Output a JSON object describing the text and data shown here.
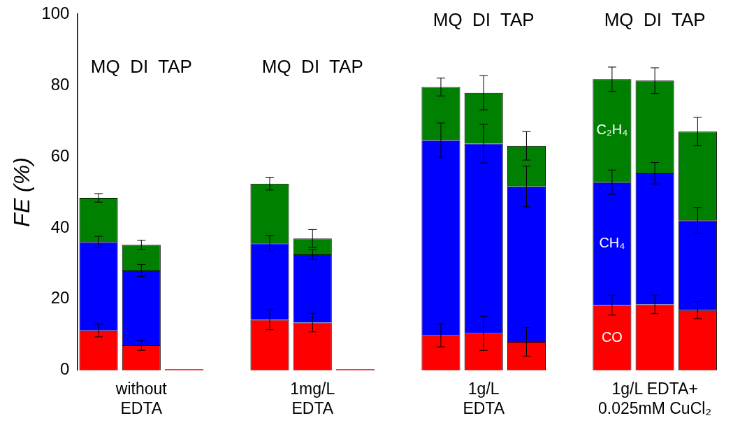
{
  "chart_data": {
    "type": "bar",
    "stacked": true,
    "ylabel": "FE (%)",
    "categories": [
      null,
      "without\nEDTA",
      null,
      null,
      null,
      "1mg/L\nEDTA",
      null,
      null,
      null,
      "1g/L\nEDTA",
      null,
      null,
      null,
      "1g/L EDTA+\n0.025mM CuCl₂",
      null
    ],
    "series": [
      {
        "name": "CO",
        "color": "#ff0000",
        "values": [
          11.2,
          7,
          0.3,
          null,
          14.2,
          13.4,
          0.3,
          null,
          9.8,
          10.4,
          8,
          null,
          18.3,
          18.5,
          16.9
        ],
        "errors": [
          1.8,
          1.4,
          null,
          null,
          2.8,
          2.6,
          null,
          null,
          3.2,
          4.8,
          4,
          null,
          2.8,
          2.6,
          2.4
        ]
      },
      {
        "name": "CH₄",
        "color": "#0000ff",
        "values": [
          24.8,
          21,
          0,
          null,
          21.4,
          19.1,
          0,
          null,
          54.8,
          53.2,
          43.6,
          null,
          34.5,
          36.8,
          25.2
        ],
        "errors": [
          1.6,
          1.7,
          null,
          null,
          2.2,
          1.4,
          null,
          null,
          4.8,
          5.4,
          5.7,
          null,
          3.4,
          3,
          3.6
        ]
      },
      {
        "name": "C₂H₄",
        "color": "#008000",
        "values": [
          12.4,
          7.2,
          0,
          null,
          16.8,
          4.5,
          0,
          null,
          14.9,
          14.3,
          11.4,
          null,
          28.9,
          26,
          24.9
        ],
        "errors": [
          1.2,
          1.3,
          null,
          null,
          1.8,
          2.5,
          null,
          null,
          2.5,
          4.8,
          4,
          null,
          3.4,
          3.6,
          4
        ]
      }
    ],
    "annotations": [
      "MQ  DI  TAP",
      "MQ  DI  TAP",
      "MQ  DI  TAP",
      "MQ  DI  TAP"
    ],
    "ylim": [
      0,
      100
    ],
    "yticks": [
      0,
      20,
      40,
      60,
      80,
      100
    ],
    "grid": false,
    "legend": false
  }
}
